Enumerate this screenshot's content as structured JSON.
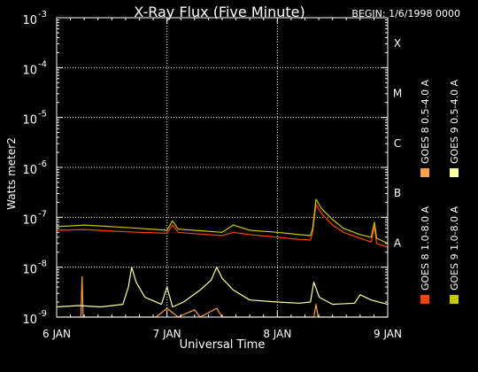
{
  "chart_data": {
    "type": "line",
    "title": "X-Ray Flux (Five Minute)",
    "begin_label": "BEGIN: 1/6/1998 0000",
    "xlabel": "Universal Time",
    "ylabel": "Watts meter2",
    "y_scale": "log",
    "ylim": [
      1e-09,
      0.001
    ],
    "xlim_days": [
      0,
      3
    ],
    "x_tick_labels": [
      "6 JAN",
      "7 JAN",
      "8 JAN",
      "9 JAN"
    ],
    "y_tick_labels": [
      {
        "base": "10",
        "exp": "-9"
      },
      {
        "base": "10",
        "exp": "-8"
      },
      {
        "base": "10",
        "exp": "-7"
      },
      {
        "base": "10",
        "exp": "-6"
      },
      {
        "base": "10",
        "exp": "-5"
      },
      {
        "base": "10",
        "exp": "-4"
      },
      {
        "base": "10",
        "exp": "-3"
      }
    ],
    "flare_classes": [
      "A",
      "B",
      "C",
      "M",
      "X"
    ],
    "grid": "dotted",
    "legend": [
      {
        "name": "GOES 8 1.0-8.0 A",
        "color": "#ff4400"
      },
      {
        "name": "GOES 8 0.5-4.0 A",
        "color": "#ffa040"
      },
      {
        "name": "GOES 9 1.0-8.0 A",
        "color": "#c8c800"
      },
      {
        "name": "GOES 9 0.5-4.0 A",
        "color": "#ffffa0"
      }
    ],
    "series": [
      {
        "name": "GOES 8 1.0-8.0 A",
        "color": "#ff4400",
        "points": [
          [
            0,
            5.5e-08
          ],
          [
            0.25,
            5.7e-08
          ],
          [
            0.5,
            5.3e-08
          ],
          [
            0.75,
            5e-08
          ],
          [
            1.0,
            4.8e-08
          ],
          [
            1.05,
            7e-08
          ],
          [
            1.1,
            5e-08
          ],
          [
            1.25,
            4.7e-08
          ],
          [
            1.5,
            4.3e-08
          ],
          [
            1.6,
            5e-08
          ],
          [
            1.75,
            4.5e-08
          ],
          [
            2.0,
            4e-08
          ],
          [
            2.2,
            3.6e-08
          ],
          [
            2.3,
            3.5e-08
          ],
          [
            2.32,
            5e-08
          ],
          [
            2.35,
            1.8e-07
          ],
          [
            2.4,
            1.2e-07
          ],
          [
            2.5,
            7e-08
          ],
          [
            2.6,
            5e-08
          ],
          [
            2.75,
            3.8e-08
          ],
          [
            2.85,
            3.2e-08
          ],
          [
            2.88,
            6.5e-08
          ],
          [
            2.9,
            3e-08
          ],
          [
            3.0,
            2.5e-08
          ]
        ]
      },
      {
        "name": "GOES 8 0.5-4.0 A",
        "color": "#ffa040",
        "points": [
          [
            0,
            1e-09
          ],
          [
            0.22,
            1e-09
          ],
          [
            0.23,
            6.5e-09
          ],
          [
            0.24,
            1e-09
          ],
          [
            0.6,
            1e-09
          ],
          [
            0.9,
            1e-09
          ],
          [
            1.0,
            1.5e-09
          ],
          [
            1.1,
            1e-09
          ],
          [
            1.25,
            1.4e-09
          ],
          [
            1.3,
            1e-09
          ],
          [
            1.45,
            1.5e-09
          ],
          [
            1.5,
            1e-09
          ],
          [
            2.33,
            1e-09
          ],
          [
            2.35,
            1.8e-09
          ],
          [
            2.37,
            1e-09
          ],
          [
            3.0,
            1e-09
          ]
        ]
      },
      {
        "name": "GOES 9 1.0-8.0 A",
        "color": "#c8c800",
        "points": [
          [
            0,
            6.5e-08
          ],
          [
            0.25,
            7e-08
          ],
          [
            0.5,
            6.5e-08
          ],
          [
            0.75,
            6e-08
          ],
          [
            1.0,
            5.5e-08
          ],
          [
            1.05,
            8.5e-08
          ],
          [
            1.1,
            5.8e-08
          ],
          [
            1.25,
            5.5e-08
          ],
          [
            1.5,
            5e-08
          ],
          [
            1.6,
            7e-08
          ],
          [
            1.75,
            5.5e-08
          ],
          [
            2.0,
            5e-08
          ],
          [
            2.2,
            4.5e-08
          ],
          [
            2.3,
            4.3e-08
          ],
          [
            2.32,
            6e-08
          ],
          [
            2.35,
            2.3e-07
          ],
          [
            2.4,
            1.5e-07
          ],
          [
            2.5,
            9e-08
          ],
          [
            2.6,
            6e-08
          ],
          [
            2.75,
            4.5e-08
          ],
          [
            2.85,
            4e-08
          ],
          [
            2.88,
            8e-08
          ],
          [
            2.9,
            3.8e-08
          ],
          [
            3.0,
            3e-08
          ]
        ]
      },
      {
        "name": "GOES 9 0.5-4.0 A",
        "color": "#ffffa0",
        "points": [
          [
            0,
            1.6e-09
          ],
          [
            0.2,
            1.7e-09
          ],
          [
            0.4,
            1.6e-09
          ],
          [
            0.6,
            1.8e-09
          ],
          [
            0.65,
            4e-09
          ],
          [
            0.68,
            1e-08
          ],
          [
            0.72,
            5e-09
          ],
          [
            0.8,
            2.5e-09
          ],
          [
            0.95,
            1.8e-09
          ],
          [
            1.0,
            4e-09
          ],
          [
            1.05,
            1.6e-09
          ],
          [
            1.15,
            2e-09
          ],
          [
            1.3,
            3.5e-09
          ],
          [
            1.4,
            5.5e-09
          ],
          [
            1.45,
            1e-08
          ],
          [
            1.5,
            6e-09
          ],
          [
            1.6,
            3.5e-09
          ],
          [
            1.75,
            2.2e-09
          ],
          [
            2.0,
            2e-09
          ],
          [
            2.2,
            1.9e-09
          ],
          [
            2.3,
            2e-09
          ],
          [
            2.33,
            5e-09
          ],
          [
            2.38,
            2.5e-09
          ],
          [
            2.5,
            1.8e-09
          ],
          [
            2.7,
            1.9e-09
          ],
          [
            2.75,
            2.8e-09
          ],
          [
            2.85,
            2.2e-09
          ],
          [
            3.0,
            1.8e-09
          ]
        ]
      }
    ]
  }
}
